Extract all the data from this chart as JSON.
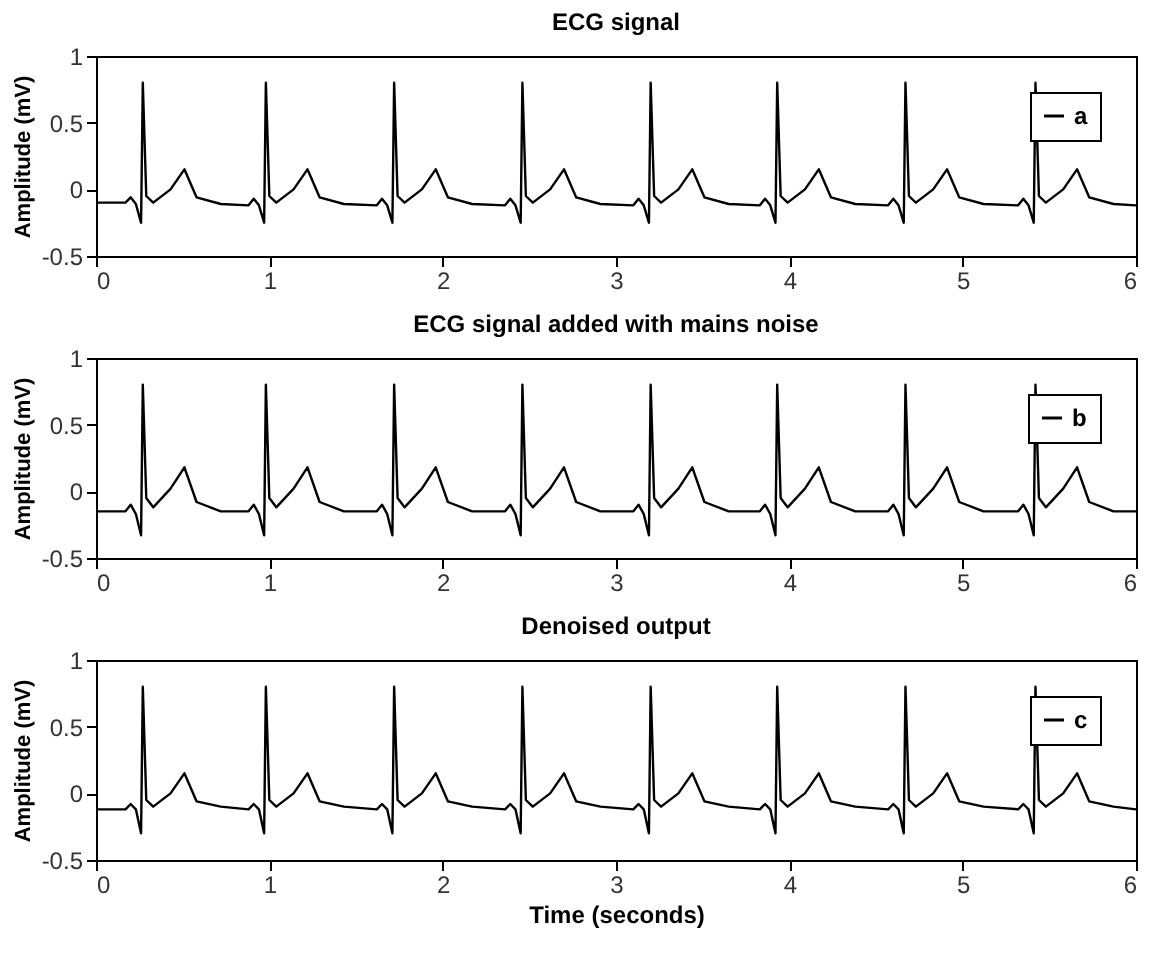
{
  "chart_data": [
    {
      "type": "line",
      "title": "ECG signal",
      "ylabel": "Amplitude (mV)",
      "xlim": [
        0,
        6
      ],
      "ylim": [
        -0.5,
        1
      ],
      "xticks": [
        0,
        1,
        2,
        3,
        4,
        5,
        6
      ],
      "yticks": [
        -0.5,
        0,
        0.5,
        1
      ],
      "grid": false,
      "legend": "top right",
      "x": [
        0,
        0.17,
        0.2,
        0.23,
        0.26,
        0.27,
        0.29,
        0.33,
        0.43,
        0.51,
        0.58,
        0.72,
        0.88,
        0.91,
        0.94,
        0.97,
        0.98,
        1.0,
        1.04,
        1.14,
        1.22,
        1.29,
        1.43,
        1.62,
        1.65,
        1.68,
        1.71,
        1.72,
        1.74,
        1.78,
        1.88,
        1.96,
        2.03,
        2.17,
        2.36,
        2.39,
        2.42,
        2.45,
        2.46,
        2.48,
        2.52,
        2.62,
        2.7,
        2.77,
        2.91,
        3.1,
        3.13,
        3.16,
        3.19,
        3.2,
        3.22,
        3.26,
        3.36,
        3.44,
        3.51,
        3.65,
        3.83,
        3.86,
        3.89,
        3.92,
        3.93,
        3.95,
        3.99,
        4.09,
        4.17,
        4.24,
        4.38,
        4.57,
        4.6,
        4.63,
        4.66,
        4.67,
        4.69,
        4.73,
        4.83,
        4.91,
        4.98,
        5.12,
        5.32,
        5.35,
        5.38,
        5.41,
        5.42,
        5.44,
        5.48,
        5.58,
        5.66,
        5.73,
        5.87,
        6
      ],
      "series": [
        {
          "name": "a",
          "color": "#000000",
          "values": [
            -0.1,
            -0.1,
            -0.06,
            -0.11,
            -0.25,
            0.8,
            -0.05,
            -0.1,
            0,
            0.15,
            -0.06,
            -0.11,
            -0.12,
            -0.07,
            -0.12,
            -0.25,
            0.8,
            -0.05,
            -0.1,
            0,
            0.15,
            -0.06,
            -0.11,
            -0.12,
            -0.07,
            -0.12,
            -0.25,
            0.8,
            -0.05,
            -0.1,
            0,
            0.15,
            -0.06,
            -0.11,
            -0.12,
            -0.07,
            -0.12,
            -0.25,
            0.8,
            -0.05,
            -0.1,
            0,
            0.15,
            -0.06,
            -0.11,
            -0.12,
            -0.07,
            -0.12,
            -0.25,
            0.8,
            -0.05,
            -0.1,
            0,
            0.15,
            -0.06,
            -0.11,
            -0.12,
            -0.07,
            -0.12,
            -0.25,
            0.8,
            -0.05,
            -0.1,
            0,
            0.15,
            -0.06,
            -0.11,
            -0.12,
            -0.07,
            -0.12,
            -0.25,
            0.8,
            -0.05,
            -0.1,
            0,
            0.15,
            -0.06,
            -0.11,
            -0.12,
            -0.07,
            -0.12,
            -0.25,
            0.8,
            -0.05,
            -0.1,
            0,
            0.15,
            -0.06,
            -0.11,
            -0.12
          ]
        }
      ]
    },
    {
      "type": "line",
      "title": "ECG signal added with mains noise",
      "ylabel": "Amplitude (mV)",
      "xlim": [
        0,
        6
      ],
      "ylim": [
        -0.5,
        1
      ],
      "xticks": [
        0,
        1,
        2,
        3,
        4,
        5,
        6
      ],
      "yticks": [
        -0.5,
        0,
        0.5,
        1
      ],
      "grid": false,
      "legend": "top right",
      "x": [
        0,
        0.17,
        0.2,
        0.23,
        0.26,
        0.27,
        0.29,
        0.33,
        0.43,
        0.51,
        0.58,
        0.72,
        0.88,
        0.91,
        0.94,
        0.97,
        0.98,
        1.0,
        1.04,
        1.14,
        1.22,
        1.29,
        1.43,
        1.62,
        1.65,
        1.68,
        1.71,
        1.72,
        1.74,
        1.78,
        1.88,
        1.96,
        2.03,
        2.17,
        2.36,
        2.39,
        2.42,
        2.45,
        2.46,
        2.48,
        2.52,
        2.62,
        2.7,
        2.77,
        2.91,
        3.1,
        3.13,
        3.16,
        3.19,
        3.2,
        3.22,
        3.26,
        3.36,
        3.44,
        3.51,
        3.65,
        3.83,
        3.86,
        3.89,
        3.92,
        3.93,
        3.95,
        3.99,
        4.09,
        4.17,
        4.24,
        4.38,
        4.57,
        4.6,
        4.63,
        4.66,
        4.67,
        4.69,
        4.73,
        4.83,
        4.91,
        4.98,
        5.12,
        5.32,
        5.35,
        5.38,
        5.41,
        5.42,
        5.44,
        5.48,
        5.58,
        5.66,
        5.73,
        5.87,
        6
      ],
      "series": [
        {
          "name": "b",
          "color": "#000000",
          "values": [
            -0.15,
            -0.15,
            -0.1,
            -0.17,
            -0.33,
            0.8,
            -0.05,
            -0.12,
            0.02,
            0.18,
            -0.08,
            -0.15,
            -0.15,
            -0.1,
            -0.17,
            -0.33,
            0.8,
            -0.05,
            -0.12,
            0.02,
            0.18,
            -0.08,
            -0.15,
            -0.15,
            -0.1,
            -0.17,
            -0.33,
            0.8,
            -0.05,
            -0.12,
            0.02,
            0.18,
            -0.08,
            -0.15,
            -0.15,
            -0.1,
            -0.17,
            -0.33,
            0.8,
            -0.05,
            -0.12,
            0.02,
            0.18,
            -0.08,
            -0.15,
            -0.15,
            -0.1,
            -0.17,
            -0.33,
            0.8,
            -0.05,
            -0.12,
            0.02,
            0.18,
            -0.08,
            -0.15,
            -0.15,
            -0.1,
            -0.17,
            -0.33,
            0.8,
            -0.05,
            -0.12,
            0.02,
            0.18,
            -0.08,
            -0.15,
            -0.15,
            -0.1,
            -0.17,
            -0.33,
            0.8,
            -0.05,
            -0.12,
            0.02,
            0.18,
            -0.08,
            -0.15,
            -0.15,
            -0.1,
            -0.17,
            -0.33,
            0.8,
            -0.05,
            -0.12,
            0.02,
            0.18,
            -0.08,
            -0.15,
            -0.15
          ]
        }
      ]
    },
    {
      "type": "line",
      "title": "Denoised output",
      "xlabel": "Time (seconds)",
      "ylabel": "Amplitude (mV)",
      "xlim": [
        0,
        6
      ],
      "ylim": [
        -0.5,
        1
      ],
      "xticks": [
        0,
        1,
        2,
        3,
        4,
        5,
        6
      ],
      "yticks": [
        -0.5,
        0,
        0.5,
        1
      ],
      "grid": false,
      "legend": "top right",
      "x": [
        0,
        0.17,
        0.2,
        0.23,
        0.26,
        0.27,
        0.29,
        0.33,
        0.43,
        0.51,
        0.58,
        0.72,
        0.88,
        0.91,
        0.94,
        0.97,
        0.98,
        1.0,
        1.04,
        1.14,
        1.22,
        1.29,
        1.43,
        1.62,
        1.65,
        1.68,
        1.71,
        1.72,
        1.74,
        1.78,
        1.88,
        1.96,
        2.03,
        2.17,
        2.36,
        2.39,
        2.42,
        2.45,
        2.46,
        2.48,
        2.52,
        2.62,
        2.7,
        2.77,
        2.91,
        3.1,
        3.13,
        3.16,
        3.19,
        3.2,
        3.22,
        3.26,
        3.36,
        3.44,
        3.51,
        3.65,
        3.83,
        3.86,
        3.89,
        3.92,
        3.93,
        3.95,
        3.99,
        4.09,
        4.17,
        4.24,
        4.38,
        4.57,
        4.6,
        4.63,
        4.66,
        4.67,
        4.69,
        4.73,
        4.83,
        4.91,
        4.98,
        5.12,
        5.32,
        5.35,
        5.38,
        5.41,
        5.42,
        5.44,
        5.48,
        5.58,
        5.66,
        5.73,
        5.87,
        6
      ],
      "series": [
        {
          "name": "c",
          "color": "#000000",
          "values": [
            -0.12,
            -0.12,
            -0.08,
            -0.12,
            -0.3,
            0.8,
            -0.05,
            -0.1,
            0,
            0.15,
            -0.06,
            -0.1,
            -0.12,
            -0.08,
            -0.12,
            -0.3,
            0.8,
            -0.05,
            -0.1,
            0,
            0.15,
            -0.06,
            -0.1,
            -0.12,
            -0.08,
            -0.12,
            -0.3,
            0.8,
            -0.05,
            -0.1,
            0,
            0.15,
            -0.06,
            -0.1,
            -0.12,
            -0.08,
            -0.12,
            -0.3,
            0.8,
            -0.05,
            -0.1,
            0,
            0.15,
            -0.06,
            -0.1,
            -0.12,
            -0.08,
            -0.12,
            -0.3,
            0.8,
            -0.05,
            -0.1,
            0,
            0.15,
            -0.06,
            -0.1,
            -0.12,
            -0.08,
            -0.12,
            -0.3,
            0.8,
            -0.05,
            -0.1,
            0,
            0.15,
            -0.06,
            -0.1,
            -0.12,
            -0.08,
            -0.12,
            -0.3,
            0.8,
            -0.05,
            -0.1,
            0,
            0.15,
            -0.06,
            -0.1,
            -0.12,
            -0.08,
            -0.12,
            -0.3,
            0.8,
            -0.05,
            -0.1,
            0,
            0.15,
            -0.06,
            -0.1,
            -0.12
          ]
        }
      ]
    }
  ]
}
